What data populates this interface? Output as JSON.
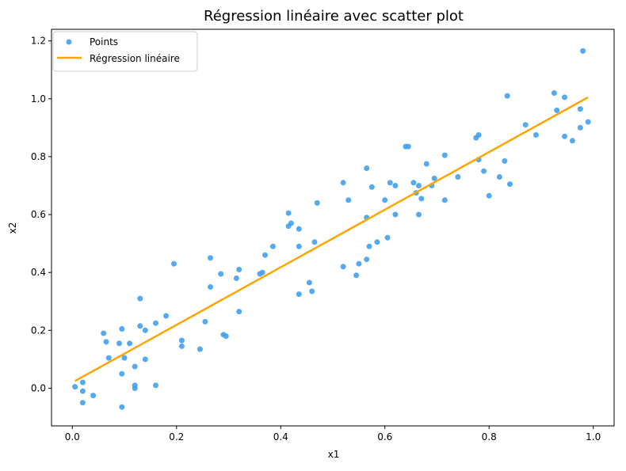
{
  "chart_data": {
    "type": "scatter",
    "title": "Régression linéaire avec scatter plot",
    "xlabel": "x1",
    "ylabel": "x2",
    "xlim": [
      -0.04,
      1.04
    ],
    "ylim": [
      -0.13,
      1.24
    ],
    "xticks": [
      {
        "value": 0.0,
        "label": "0.0"
      },
      {
        "value": 0.2,
        "label": "0.2"
      },
      {
        "value": 0.4,
        "label": "0.4"
      },
      {
        "value": 0.6,
        "label": "0.6"
      },
      {
        "value": 0.8,
        "label": "0.8"
      },
      {
        "value": 1.0,
        "label": "1.0"
      }
    ],
    "yticks": [
      {
        "value": 0.0,
        "label": "0.0"
      },
      {
        "value": 0.2,
        "label": "0.2"
      },
      {
        "value": 0.4,
        "label": "0.4"
      },
      {
        "value": 0.6,
        "label": "0.6"
      },
      {
        "value": 0.8,
        "label": "0.8"
      },
      {
        "value": 1.0,
        "label": "1.0"
      },
      {
        "value": 1.2,
        "label": "1.2"
      }
    ],
    "grid": false,
    "legend_position": "top-left",
    "series": [
      {
        "name": "Points",
        "kind": "scatter",
        "color": "#42a0ee",
        "points": [
          [
            0.005,
            0.005
          ],
          [
            0.02,
            -0.01
          ],
          [
            0.02,
            0.02
          ],
          [
            0.02,
            -0.05
          ],
          [
            0.04,
            -0.025
          ],
          [
            0.06,
            0.19
          ],
          [
            0.065,
            0.16
          ],
          [
            0.07,
            0.105
          ],
          [
            0.09,
            0.155
          ],
          [
            0.095,
            -0.065
          ],
          [
            0.095,
            0.205
          ],
          [
            0.095,
            0.05
          ],
          [
            0.1,
            0.105
          ],
          [
            0.11,
            0.155
          ],
          [
            0.12,
            0.0
          ],
          [
            0.12,
            0.075
          ],
          [
            0.12,
            0.01
          ],
          [
            0.13,
            0.31
          ],
          [
            0.13,
            0.215
          ],
          [
            0.14,
            0.2
          ],
          [
            0.14,
            0.1
          ],
          [
            0.16,
            0.01
          ],
          [
            0.16,
            0.225
          ],
          [
            0.18,
            0.25
          ],
          [
            0.195,
            0.43
          ],
          [
            0.21,
            0.145
          ],
          [
            0.21,
            0.165
          ],
          [
            0.245,
            0.135
          ],
          [
            0.255,
            0.23
          ],
          [
            0.265,
            0.45
          ],
          [
            0.265,
            0.35
          ],
          [
            0.285,
            0.395
          ],
          [
            0.29,
            0.185
          ],
          [
            0.295,
            0.18
          ],
          [
            0.315,
            0.38
          ],
          [
            0.32,
            0.41
          ],
          [
            0.32,
            0.265
          ],
          [
            0.36,
            0.395
          ],
          [
            0.365,
            0.4
          ],
          [
            0.37,
            0.46
          ],
          [
            0.385,
            0.49
          ],
          [
            0.415,
            0.605
          ],
          [
            0.415,
            0.56
          ],
          [
            0.42,
            0.57
          ],
          [
            0.435,
            0.55
          ],
          [
            0.435,
            0.49
          ],
          [
            0.435,
            0.325
          ],
          [
            0.455,
            0.365
          ],
          [
            0.46,
            0.335
          ],
          [
            0.465,
            0.505
          ],
          [
            0.47,
            0.64
          ],
          [
            0.52,
            0.71
          ],
          [
            0.52,
            0.42
          ],
          [
            0.53,
            0.65
          ],
          [
            0.545,
            0.39
          ],
          [
            0.55,
            0.43
          ],
          [
            0.565,
            0.445
          ],
          [
            0.565,
            0.59
          ],
          [
            0.565,
            0.76
          ],
          [
            0.57,
            0.49
          ],
          [
            0.575,
            0.695
          ],
          [
            0.585,
            0.505
          ],
          [
            0.6,
            0.65
          ],
          [
            0.605,
            0.52
          ],
          [
            0.61,
            0.71
          ],
          [
            0.62,
            0.7
          ],
          [
            0.62,
            0.6
          ],
          [
            0.64,
            0.835
          ],
          [
            0.645,
            0.835
          ],
          [
            0.655,
            0.71
          ],
          [
            0.66,
            0.675
          ],
          [
            0.665,
            0.7
          ],
          [
            0.665,
            0.6
          ],
          [
            0.67,
            0.655
          ],
          [
            0.68,
            0.775
          ],
          [
            0.69,
            0.7
          ],
          [
            0.695,
            0.725
          ],
          [
            0.715,
            0.805
          ],
          [
            0.715,
            0.65
          ],
          [
            0.74,
            0.73
          ],
          [
            0.775,
            0.865
          ],
          [
            0.78,
            0.875
          ],
          [
            0.78,
            0.79
          ],
          [
            0.79,
            0.75
          ],
          [
            0.8,
            0.665
          ],
          [
            0.82,
            0.73
          ],
          [
            0.83,
            0.785
          ],
          [
            0.835,
            1.01
          ],
          [
            0.84,
            0.705
          ],
          [
            0.87,
            0.91
          ],
          [
            0.89,
            0.875
          ],
          [
            0.925,
            1.02
          ],
          [
            0.93,
            0.96
          ],
          [
            0.945,
            1.005
          ],
          [
            0.945,
            0.87
          ],
          [
            0.96,
            0.855
          ],
          [
            0.975,
            0.965
          ],
          [
            0.975,
            0.9
          ],
          [
            0.98,
            1.165
          ],
          [
            0.99,
            0.92
          ]
        ]
      },
      {
        "name": "Régression linéaire",
        "kind": "line",
        "color": "#ffa500",
        "points": [
          [
            0.005,
            0.025
          ],
          [
            0.99,
            1.005
          ]
        ]
      }
    ]
  }
}
